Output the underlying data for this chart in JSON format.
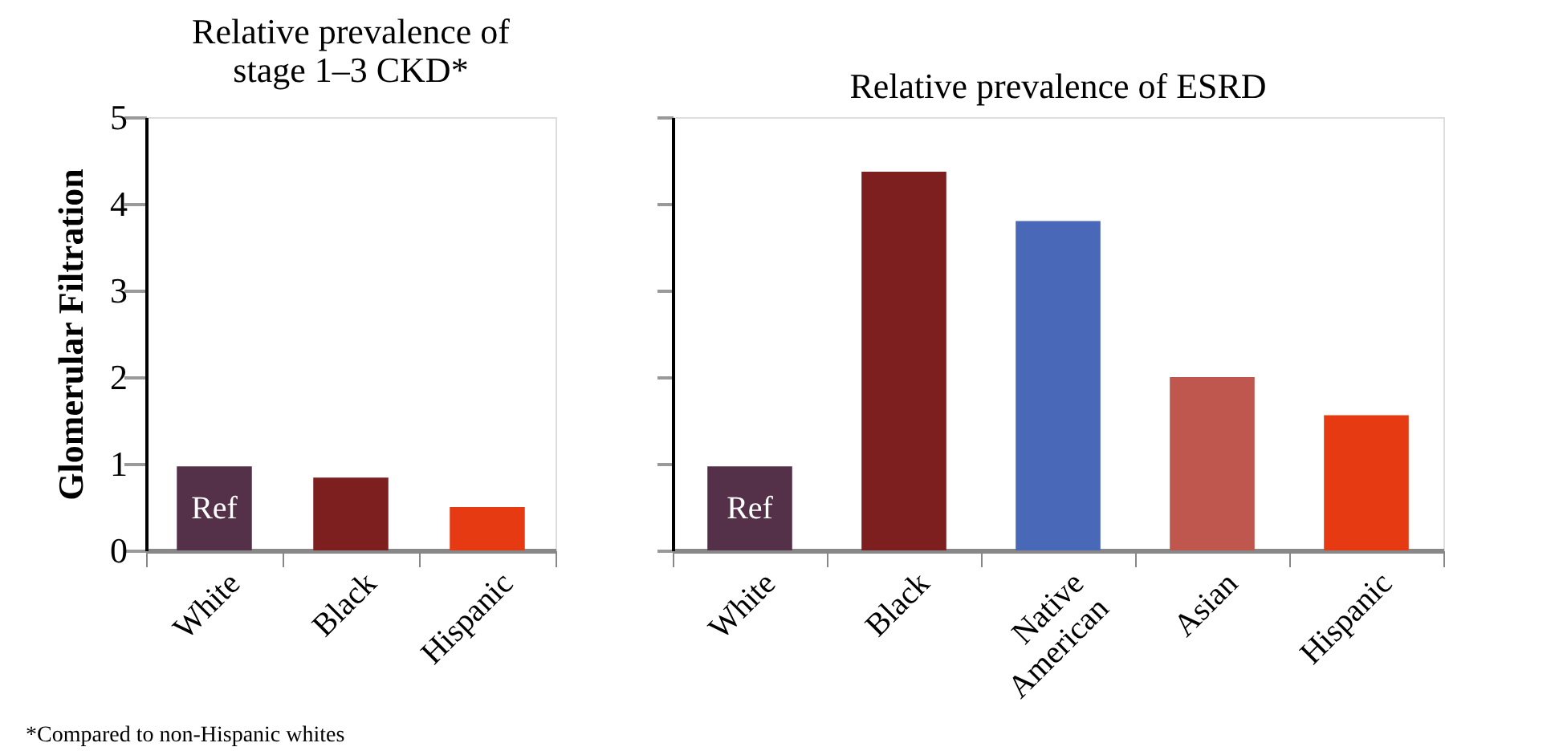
{
  "chart_data": [
    {
      "type": "bar",
      "title": "Relative prevalence of\nstage 1–3 CKD*",
      "ylabel": "Glomerular Filtration",
      "categories": [
        "White",
        "Black",
        "Hispanic"
      ],
      "values": [
        0.97,
        0.84,
        0.5
      ],
      "colors": [
        "#553049",
        "#7e1f1f",
        "#e63a12"
      ],
      "ylim": [
        0,
        5
      ],
      "yticks": [
        0,
        1,
        2,
        3,
        4,
        5
      ],
      "grid": false,
      "annotations": [
        "Ref",
        "*Compared to non-Hispanic whites"
      ]
    },
    {
      "type": "bar",
      "title": "Relative prevalence of ESRD",
      "categories": [
        "White",
        "Black",
        "Native\nAmerican",
        "Asian",
        "Hispanic"
      ],
      "values": [
        0.97,
        4.37,
        3.8,
        2.0,
        1.56
      ],
      "colors": [
        "#553049",
        "#7e1f1f",
        "#4a68b8",
        "#c0574f",
        "#e63a12"
      ],
      "ylim": [
        0,
        5
      ],
      "yticks": [
        0,
        1,
        2,
        3,
        4,
        5
      ],
      "tick_labels": "x",
      "grid": false,
      "annotations": [
        "Ref"
      ]
    }
  ]
}
